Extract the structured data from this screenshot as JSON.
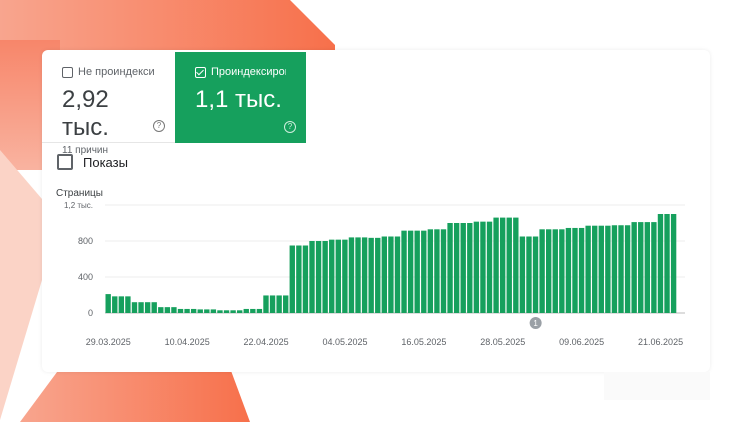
{
  "tabs": [
    {
      "label": "Не проиндексир...",
      "value": "2,92 тыс.",
      "sub": "11 причин",
      "checked": false,
      "help_icon": "help-circle-icon"
    },
    {
      "label": "Проиндексирова...",
      "value": "1,1 тыс.",
      "checked": true,
      "help_icon": "help-circle-icon",
      "color": "#16a05d"
    }
  ],
  "impressions": {
    "label": "Показы",
    "checked": false
  },
  "chart_data": {
    "type": "bar",
    "ylabel": "Страницы",
    "ylim": [
      0,
      1200
    ],
    "yticks": [
      "0",
      "400",
      "800",
      "1,2 тыс."
    ],
    "ytick_values": [
      0,
      400,
      800,
      1200
    ],
    "xticks": [
      "29.03.2025",
      "10.04.2025",
      "22.04.2025",
      "04.05.2025",
      "16.05.2025",
      "28.05.2025",
      "09.06.2025",
      "21.06.2025"
    ],
    "start_date": "29.03.2025",
    "bar_color": "#16a05d",
    "grid": true,
    "annotation": {
      "label": "1",
      "date": "02.06.2025"
    },
    "values": [
      210,
      185,
      185,
      185,
      120,
      120,
      120,
      120,
      65,
      65,
      65,
      45,
      45,
      45,
      40,
      40,
      40,
      30,
      30,
      30,
      30,
      45,
      45,
      45,
      195,
      195,
      195,
      195,
      750,
      750,
      750,
      800,
      800,
      800,
      815,
      815,
      815,
      840,
      840,
      840,
      835,
      835,
      850,
      850,
      850,
      915,
      915,
      915,
      915,
      930,
      930,
      930,
      1000,
      1000,
      1000,
      1000,
      1015,
      1015,
      1015,
      1060,
      1060,
      1060,
      1060,
      850,
      850,
      850,
      930,
      930,
      930,
      930,
      945,
      945,
      945,
      970,
      970,
      970,
      970,
      975,
      975,
      975,
      1010,
      1010,
      1010,
      1010,
      1100,
      1100,
      1100
    ]
  }
}
